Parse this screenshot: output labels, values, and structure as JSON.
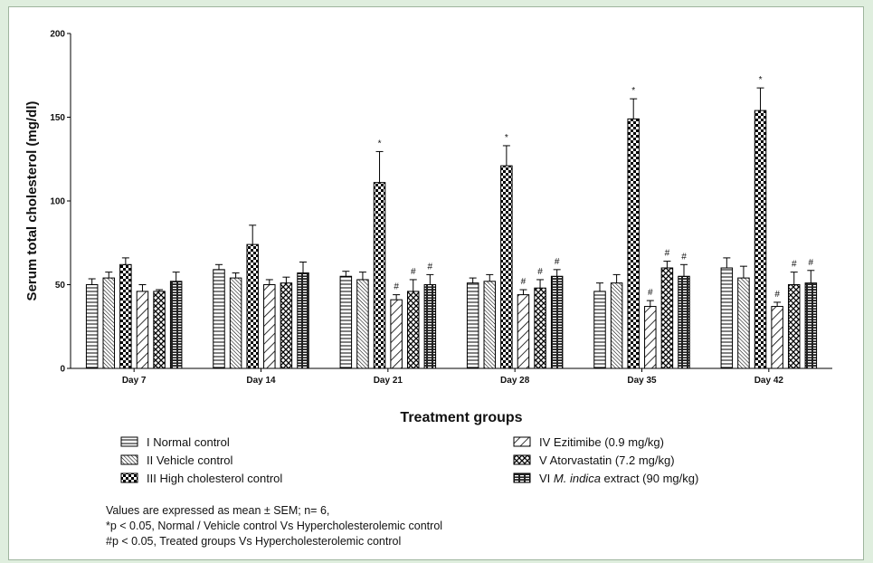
{
  "chart_data": {
    "type": "bar",
    "ylabel": "Serum total cholesterol (mg/dl)",
    "xlabel": "Treatment groups",
    "ylim": [
      0,
      200
    ],
    "yticks": [
      "0",
      "50",
      "100",
      "150",
      "200"
    ],
    "categories": [
      "Day 7",
      "Day 14",
      "Day 21",
      "Day 28",
      "Day 35",
      "Day 42"
    ],
    "series": [
      {
        "name": "I Normal control",
        "pattern": "hlines",
        "values": [
          50,
          59,
          55,
          51,
          46,
          60
        ],
        "errors": [
          3.5,
          3,
          3,
          3,
          5,
          6
        ],
        "marks": [
          "",
          "",
          "",
          "",
          "",
          ""
        ]
      },
      {
        "name": "II Vehicle control",
        "pattern": "diag-dense",
        "values": [
          54,
          54,
          53,
          52,
          51,
          54
        ],
        "errors": [
          3.5,
          3,
          4.5,
          4,
          5,
          7
        ],
        "marks": [
          "",
          "",
          "",
          "",
          "",
          ""
        ]
      },
      {
        "name": "III High cholesterol control",
        "pattern": "checker",
        "values": [
          62,
          74,
          111,
          121,
          149,
          154
        ],
        "errors": [
          4,
          11.5,
          18.5,
          12,
          12,
          13.5
        ],
        "marks": [
          "",
          "",
          "*",
          "*",
          "*",
          "*"
        ]
      },
      {
        "name": "IV Ezitimibe (0.9 mg/kg)",
        "pattern": "diag-wide",
        "values": [
          46,
          50,
          41,
          44,
          37,
          37
        ],
        "errors": [
          4,
          3,
          3,
          3,
          3.5,
          2.5
        ],
        "marks": [
          "",
          "",
          "#",
          "#",
          "#",
          "#"
        ]
      },
      {
        "name": "V Atorvastatin (7.2 mg/kg)",
        "pattern": "crosshatch",
        "values": [
          46,
          51,
          46,
          48,
          60,
          50
        ],
        "errors": [
          1,
          3.5,
          7,
          5,
          4,
          7.5
        ],
        "marks": [
          "",
          "",
          "#",
          "#",
          "#",
          "#"
        ]
      },
      {
        "name": "VI M. indica extract (90 mg/kg)",
        "pattern": "brick",
        "values": [
          52,
          57,
          50,
          55,
          55,
          51
        ],
        "errors": [
          5.5,
          6.5,
          6,
          4,
          7,
          7.5
        ],
        "marks": [
          "",
          "",
          "#",
          "#",
          "#",
          "#"
        ]
      }
    ],
    "legend": [
      {
        "prefix": "I Normal control",
        "italic": "",
        "suffix": ""
      },
      {
        "prefix": "II Vehicle control",
        "italic": "",
        "suffix": ""
      },
      {
        "prefix": "III High cholesterol control",
        "italic": "",
        "suffix": ""
      },
      {
        "prefix": "IV Ezitimibe (0.9 mg/kg)",
        "italic": "",
        "suffix": ""
      },
      {
        "prefix": "V Atorvastatin (7.2 mg/kg)",
        "italic": "",
        "suffix": ""
      },
      {
        "prefix": "VI ",
        "italic": "M. indica",
        "suffix": " extract (90 mg/kg)"
      }
    ],
    "legend_placement": "bottom",
    "grid": false
  },
  "notes": [
    "Values are expressed as mean ± SEM; n= 6,",
    "*p < 0.05, Normal / Vehicle control Vs Hypercholesterolemic control",
    "#p < 0.05, Treated groups Vs Hypercholesterolemic control"
  ]
}
